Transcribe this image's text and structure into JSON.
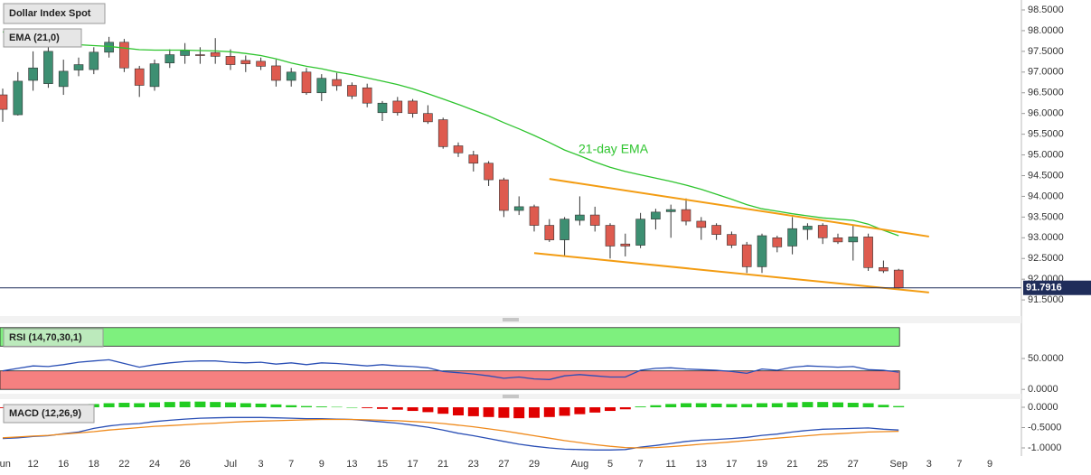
{
  "chart_data": [
    {
      "type": "candlestick",
      "title": "Dollar Index Spot",
      "categories": [
        "Jun",
        null,
        "12",
        null,
        "16",
        null,
        "18",
        null,
        "22",
        null,
        "24",
        null,
        "26",
        null,
        null,
        "Jul",
        null,
        "3",
        null,
        "7",
        null,
        "9",
        null,
        "13",
        null,
        "15",
        null,
        "17",
        null,
        "21",
        null,
        "23",
        null,
        "27",
        null,
        "29",
        null,
        null,
        "Aug",
        null,
        "5",
        null,
        "7",
        null,
        "11",
        null,
        "13",
        null,
        "17",
        null,
        "19",
        null,
        "21",
        null,
        "25",
        null,
        "27",
        null,
        null,
        "Sep",
        null,
        "3",
        null,
        "7",
        null,
        "9",
        null
      ],
      "open": [
        96.45,
        95.97,
        96.8,
        96.72,
        96.65,
        97.05,
        97.06,
        97.48,
        97.72,
        97.08,
        96.65,
        97.22,
        97.4,
        97.42,
        97.47,
        97.38,
        97.28,
        97.26,
        97.15,
        96.8,
        97.0,
        96.5,
        96.82,
        96.68,
        96.62,
        96.02,
        96.3,
        96.3,
        96.0,
        95.85,
        95.22,
        95.0,
        94.8,
        94.4,
        93.66,
        93.75,
        93.3,
        92.95,
        93.42,
        93.55,
        93.3,
        92.85,
        92.82,
        93.45,
        93.63,
        93.68,
        93.4,
        93.3,
        93.08,
        92.83,
        92.3,
        93.0,
        92.8,
        93.2,
        93.3,
        93.0,
        92.9,
        93.02,
        92.28,
        92.22,
        null,
        null,
        null,
        null,
        null,
        null,
        null
      ],
      "high": [
        96.6,
        97.0,
        97.5,
        97.6,
        97.3,
        97.35,
        97.6,
        97.85,
        97.8,
        97.15,
        97.3,
        97.55,
        97.7,
        97.6,
        97.82,
        97.55,
        97.4,
        97.35,
        97.3,
        97.1,
        97.1,
        96.95,
        96.98,
        96.75,
        96.72,
        96.3,
        96.4,
        96.35,
        96.2,
        95.9,
        95.3,
        95.1,
        94.85,
        94.45,
        94.0,
        93.8,
        93.45,
        93.5,
        94.0,
        93.75,
        93.35,
        93.1,
        93.6,
        93.7,
        93.8,
        93.95,
        93.5,
        93.35,
        93.15,
        92.9,
        93.1,
        93.05,
        93.5,
        93.35,
        93.35,
        93.1,
        93.3,
        93.1,
        92.45,
        92.25,
        null,
        null,
        null,
        null,
        null,
        null,
        null
      ],
      "low": [
        95.8,
        95.95,
        96.55,
        96.62,
        96.45,
        96.9,
        96.95,
        97.35,
        97.0,
        96.4,
        96.55,
        97.1,
        97.2,
        97.2,
        97.2,
        97.05,
        97.0,
        97.05,
        96.65,
        96.65,
        96.45,
        96.3,
        96.55,
        96.35,
        96.15,
        95.82,
        95.95,
        95.9,
        95.75,
        95.15,
        94.95,
        94.6,
        94.25,
        93.5,
        93.55,
        93.15,
        92.9,
        92.55,
        93.3,
        93.15,
        92.5,
        92.55,
        92.75,
        93.2,
        93.0,
        93.3,
        92.95,
        92.95,
        92.75,
        92.15,
        92.15,
        92.65,
        92.6,
        92.95,
        92.85,
        92.85,
        92.45,
        92.2,
        92.15,
        91.78,
        null,
        null,
        null,
        null,
        null,
        null,
        null
      ],
      "close": [
        96.1,
        96.78,
        97.1,
        97.5,
        97.02,
        97.18,
        97.48,
        97.72,
        97.1,
        96.68,
        97.2,
        97.42,
        97.52,
        97.4,
        97.38,
        97.18,
        97.2,
        97.14,
        96.8,
        97.0,
        96.5,
        96.85,
        96.67,
        96.42,
        96.25,
        96.25,
        96.02,
        96.0,
        95.8,
        95.2,
        95.05,
        94.8,
        94.4,
        93.66,
        93.75,
        93.3,
        92.95,
        93.45,
        93.55,
        93.3,
        92.8,
        92.8,
        93.45,
        93.62,
        93.68,
        93.4,
        93.25,
        93.08,
        92.82,
        92.3,
        93.05,
        92.78,
        93.22,
        93.28,
        93.0,
        92.9,
        93.02,
        92.28,
        92.2,
        91.79,
        null,
        null,
        null,
        null,
        null,
        null,
        null
      ],
      "up_color": "#3d8f72",
      "down_color": "#de5b4f",
      "series": [
        {
          "name": "EMA (21,0)",
          "color": "#2ec42e",
          "values": [
            97.97,
            97.9,
            97.83,
            97.76,
            97.7,
            97.66,
            97.64,
            97.62,
            97.58,
            97.54,
            97.53,
            97.53,
            97.53,
            97.52,
            97.51,
            97.49,
            97.45,
            97.4,
            97.32,
            97.22,
            97.14,
            97.08,
            97.0,
            96.94,
            96.86,
            96.78,
            96.7,
            96.6,
            96.48,
            96.35,
            96.22,
            96.08,
            95.94,
            95.78,
            95.63,
            95.47,
            95.3,
            95.12,
            94.98,
            94.83,
            94.7,
            94.6,
            94.52,
            94.44,
            94.36,
            94.27,
            94.17,
            94.05,
            93.93,
            93.8,
            93.7,
            93.64,
            93.58,
            93.53,
            93.48,
            93.45,
            93.42,
            93.33,
            93.18,
            93.05,
            null,
            null,
            null,
            null,
            null,
            null,
            null
          ]
        }
      ],
      "annotation": "21-day EMA",
      "trendlines": [
        {
          "color": "#f39c12",
          "x": [
            36,
            61
          ],
          "y": [
            94.42,
            93.03
          ]
        },
        {
          "color": "#f39c12",
          "x": [
            35,
            61
          ],
          "y": [
            92.63,
            91.68
          ]
        }
      ],
      "last_price": 91.7916,
      "last_price_color": "#1f2d5a",
      "ylim": [
        91.11,
        98.74
      ],
      "yticks": [
        {
          "value": 98.5,
          "label": "98.5000"
        },
        {
          "value": 98,
          "label": "98.0000"
        },
        {
          "value": 97.5,
          "label": "97.5000"
        },
        {
          "value": 97,
          "label": "97.0000"
        },
        {
          "value": 96.5,
          "label": "96.5000"
        },
        {
          "value": 96,
          "label": "96.0000"
        },
        {
          "value": 95.5,
          "label": "95.5000"
        },
        {
          "value": 95,
          "label": "95.0000"
        },
        {
          "value": 94.5,
          "label": "94.5000"
        },
        {
          "value": 94,
          "label": "94.0000"
        },
        {
          "value": 93.5,
          "label": "93.5000"
        },
        {
          "value": 93,
          "label": "93.0000"
        },
        {
          "value": 92.5,
          "label": "92.5000"
        },
        {
          "value": 92,
          "label": "92.0000"
        },
        {
          "value": 91.5,
          "label": "91.5000"
        }
      ]
    },
    {
      "type": "line",
      "title": "RSI (14,70,30,1)",
      "series": [
        {
          "color": "#2a4fb5",
          "values": [
            30,
            34,
            38,
            37,
            40,
            44,
            46,
            48,
            42,
            36,
            40,
            43,
            45,
            46,
            46,
            44,
            43,
            44,
            41,
            43,
            40,
            43,
            42,
            40,
            38,
            40,
            38,
            37,
            35,
            29,
            27,
            25,
            22,
            18,
            20,
            17,
            16,
            22,
            24,
            22,
            20,
            20,
            31,
            34,
            35,
            33,
            32,
            31,
            29,
            26,
            33,
            31,
            36,
            38,
            37,
            36,
            37,
            32,
            31,
            28
          ]
        }
      ],
      "zones": [
        {
          "range": [
            70,
            100
          ],
          "color": "#7ef07e"
        },
        {
          "range": [
            0,
            30
          ],
          "color": "#f58080"
        }
      ],
      "ylim": [
        -7,
        107
      ],
      "yticks": [
        {
          "value": 50,
          "label": "50.0000"
        },
        {
          "value": 0,
          "label": "0.0000"
        }
      ]
    },
    {
      "type": "macd",
      "title": "MACD (12,26,9)",
      "histogram": [
        -0.02,
        -0.02,
        -0.01,
        -0.01,
        0.01,
        0.02,
        0.08,
        0.1,
        0.11,
        0.1,
        0.12,
        0.13,
        0.14,
        0.14,
        0.13,
        0.12,
        0.1,
        0.09,
        0.07,
        0.05,
        0.03,
        0.02,
        0.01,
        0.0,
        -0.02,
        -0.04,
        -0.06,
        -0.09,
        -0.12,
        -0.16,
        -0.2,
        -0.22,
        -0.24,
        -0.26,
        -0.27,
        -0.26,
        -0.24,
        -0.21,
        -0.17,
        -0.13,
        -0.09,
        -0.05,
        0.02,
        0.05,
        0.08,
        0.1,
        0.1,
        0.09,
        0.08,
        0.08,
        0.1,
        0.1,
        0.12,
        0.13,
        0.13,
        0.12,
        0.11,
        0.1,
        0.06,
        0.03
      ],
      "histogram_up_color": "#22cc22",
      "histogram_down_color": "#e00000",
      "series": [
        {
          "color": "#2a4fb5",
          "values": [
            -0.77,
            -0.75,
            -0.72,
            -0.7,
            -0.65,
            -0.61,
            -0.52,
            -0.46,
            -0.42,
            -0.4,
            -0.35,
            -0.32,
            -0.29,
            -0.27,
            -0.26,
            -0.25,
            -0.25,
            -0.25,
            -0.26,
            -0.27,
            -0.28,
            -0.28,
            -0.29,
            -0.3,
            -0.33,
            -0.36,
            -0.39,
            -0.44,
            -0.49,
            -0.56,
            -0.64,
            -0.7,
            -0.77,
            -0.84,
            -0.91,
            -0.96,
            -1.0,
            -1.03,
            -1.04,
            -1.05,
            -1.05,
            -1.04,
            -0.98,
            -0.94,
            -0.89,
            -0.84,
            -0.81,
            -0.79,
            -0.77,
            -0.74,
            -0.69,
            -0.66,
            -0.61,
            -0.57,
            -0.54,
            -0.53,
            -0.52,
            -0.51,
            -0.54,
            -0.56
          ]
        },
        {
          "color": "#ef8a1c",
          "values": [
            -0.75,
            -0.73,
            -0.71,
            -0.69,
            -0.66,
            -0.63,
            -0.6,
            -0.56,
            -0.53,
            -0.5,
            -0.47,
            -0.45,
            -0.43,
            -0.41,
            -0.39,
            -0.37,
            -0.35,
            -0.34,
            -0.33,
            -0.32,
            -0.31,
            -0.3,
            -0.3,
            -0.3,
            -0.31,
            -0.32,
            -0.33,
            -0.35,
            -0.37,
            -0.4,
            -0.44,
            -0.48,
            -0.53,
            -0.58,
            -0.64,
            -0.7,
            -0.76,
            -0.82,
            -0.87,
            -0.92,
            -0.96,
            -0.99,
            -1.0,
            -0.99,
            -0.97,
            -0.94,
            -0.91,
            -0.88,
            -0.85,
            -0.82,
            -0.79,
            -0.76,
            -0.73,
            -0.7,
            -0.67,
            -0.65,
            -0.63,
            -0.61,
            -0.6,
            -0.59
          ]
        }
      ],
      "ylim": [
        -1.2,
        0.2
      ],
      "yticks": [
        {
          "value": 0,
          "label": "0.0000"
        },
        {
          "value": -0.5,
          "label": "-0.5000"
        },
        {
          "value": -1,
          "label": "-1.0000"
        }
      ]
    }
  ]
}
